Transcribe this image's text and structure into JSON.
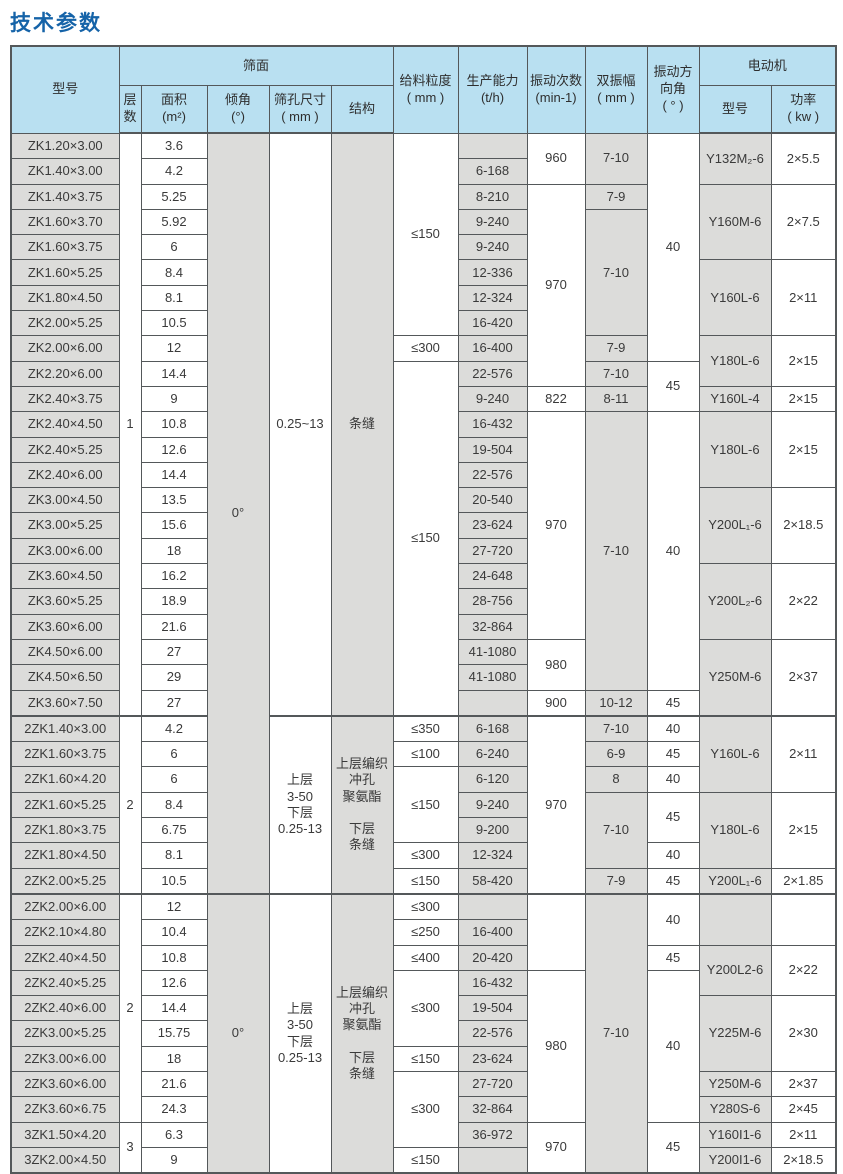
{
  "title": "技术参数",
  "colors": {
    "title": "#1563a8",
    "header_bg": "#b9e0f1",
    "cell_shade": "#dcdcda",
    "border": "#54585a",
    "text": "#3a3a3a"
  },
  "table": {
    "header": {
      "model": "型号",
      "screen_group": "筛面",
      "layers": "层\n数",
      "area": "面积\n(m²)",
      "incline": "倾角\n(°)",
      "aperture": "筛孔尺寸\n( mm )",
      "structure": "结构",
      "feed_size": "给料粒度\n( mm )",
      "capacity": "生产能力\n(t/h)",
      "frequency": "振动次数\n(min-1)",
      "amplitude": "双振幅\n( mm )",
      "direction_angle": "振动方\n向角\n( ° )",
      "motor_group": "电动机",
      "motor_model": "型号",
      "motor_power": "功率\n( kw )"
    },
    "columns": [
      {
        "key": "model",
        "width": 108,
        "shade": true
      },
      {
        "key": "layers",
        "width": 22,
        "shade": false
      },
      {
        "key": "area",
        "width": 66,
        "shade": false
      },
      {
        "key": "incline",
        "width": 62,
        "shade": true
      },
      {
        "key": "aperture",
        "width": 62,
        "shade": false
      },
      {
        "key": "structure",
        "width": 62,
        "shade": true
      },
      {
        "key": "feed_size",
        "width": 65,
        "shade": false
      },
      {
        "key": "capacity",
        "width": 69,
        "shade": true
      },
      {
        "key": "frequency",
        "width": 58,
        "shade": false
      },
      {
        "key": "amplitude",
        "width": 62,
        "shade": true
      },
      {
        "key": "direction_angle",
        "width": 52,
        "shade": false
      },
      {
        "key": "motor_model",
        "width": 72,
        "shade": true
      },
      {
        "key": "motor_power",
        "width": 65,
        "shade": false
      }
    ],
    "section_start_rows": [
      23,
      30
    ],
    "body": {
      "model": [
        "ZK1.20×3.00",
        "ZK1.40×3.00",
        "ZK1.40×3.75",
        "ZK1.60×3.70",
        "ZK1.60×3.75",
        "ZK1.60×5.25",
        "ZK1.80×4.50",
        "ZK2.00×5.25",
        "ZK2.00×6.00",
        "ZK2.20×6.00",
        "ZK2.40×3.75",
        "ZK2.40×4.50",
        "ZK2.40×5.25",
        "ZK2.40×6.00",
        "ZK3.00×4.50",
        "ZK3.00×5.25",
        "ZK3.00×6.00",
        "ZK3.60×4.50",
        "ZK3.60×5.25",
        "ZK3.60×6.00",
        "ZK4.50×6.00",
        "ZK4.50×6.50",
        "ZK3.60×7.50",
        "2ZK1.40×3.00",
        "2ZK1.60×3.75",
        "2ZK1.60×4.20",
        "2ZK1.60×5.25",
        "2ZK1.80×3.75",
        "2ZK1.80×4.50",
        "2ZK2.00×5.25",
        "2ZK2.00×6.00",
        "2ZK2.10×4.80",
        "2ZK2.40×4.50",
        "2ZK2.40×5.25",
        "2ZK2.40×6.00",
        "2ZK3.00×5.25",
        "2ZK3.00×6.00",
        "2ZK3.60×6.00",
        "2ZK3.60×6.75",
        "3ZK1.50×4.20",
        "3ZK2.00×4.50"
      ],
      "layers": [
        [
          "1",
          23
        ],
        [
          "2",
          7
        ],
        [
          "2",
          9
        ],
        [
          "3",
          2
        ]
      ],
      "area": [
        "3.6",
        "4.2",
        "5.25",
        "5.92",
        "6",
        "8.4",
        "8.1",
        "10.5",
        "12",
        "14.4",
        "9",
        "10.8",
        "12.6",
        "14.4",
        "13.5",
        "15.6",
        "18",
        "16.2",
        "18.9",
        "21.6",
        "27",
        "29",
        "27",
        "4.2",
        "6",
        "6",
        "8.4",
        "6.75",
        "8.1",
        "10.5",
        "12",
        "10.4",
        "10.8",
        "12.6",
        "14.4",
        "15.75",
        "18",
        "21.6",
        "24.3",
        "6.3",
        "9"
      ],
      "incline": [
        [
          "0°",
          30
        ],
        [
          "0°",
          11
        ]
      ],
      "aperture": [
        [
          "0.25~13",
          23
        ],
        [
          "上层\n3-50\n下层\n0.25-13",
          7
        ],
        [
          "上层\n3-50\n下层\n0.25-13",
          11
        ]
      ],
      "structure": [
        [
          "条缝",
          23
        ],
        [
          "上层编织\n冲孔\n聚氨酯\n\n下层\n条缝",
          7
        ],
        [
          "上层编织\n冲孔\n聚氨酯\n\n下层\n条缝",
          11
        ]
      ],
      "feed_size": [
        [
          "≤150",
          8
        ],
        [
          "≤300",
          1
        ],
        [
          "≤150",
          14
        ],
        [
          "≤350",
          1
        ],
        [
          "≤100",
          1
        ],
        [
          "≤150",
          3
        ],
        [
          "≤300",
          1
        ],
        [
          "≤150",
          1
        ],
        [
          "≤300",
          1
        ],
        [
          "≤250",
          1
        ],
        [
          "≤400",
          1
        ],
        [
          "≤300",
          3
        ],
        [
          "≤150",
          1
        ],
        [
          "≤300",
          3
        ],
        [
          "≤150",
          1
        ]
      ],
      "capacity": [
        "",
        "6-168",
        "8-210",
        "9-240",
        "9-240",
        "12-336",
        "12-324",
        "16-420",
        "16-400",
        "22-576",
        "9-240",
        "16-432",
        "19-504",
        "22-576",
        "20-540",
        "23-624",
        "27-720",
        "24-648",
        "28-756",
        "32-864",
        "41-1080",
        "41-1080",
        "",
        "6-168",
        "6-240",
        "6-120",
        "9-240",
        "9-200",
        "12-324",
        "58-420",
        "",
        "16-400",
        "20-420",
        "16-432",
        "19-504",
        "22-576",
        "23-624",
        "27-720",
        "32-864",
        "36-972",
        ""
      ],
      "frequency": [
        [
          "960",
          2
        ],
        [
          "970",
          8
        ],
        [
          "822",
          1
        ],
        [
          "970",
          9
        ],
        [
          "980",
          2
        ],
        [
          "900",
          1
        ],
        [
          "970",
          7
        ],
        [
          "",
          3
        ],
        [
          "980",
          6
        ],
        [
          "970",
          2
        ]
      ],
      "amplitude": [
        [
          "7-10",
          2
        ],
        [
          "7-9",
          1
        ],
        [
          "7-10",
          5
        ],
        [
          "7-9",
          1
        ],
        [
          "7-10",
          1
        ],
        [
          "8-11",
          1
        ],
        [
          "7-10",
          11
        ],
        [
          "10-12",
          1
        ],
        [
          "7-10",
          1
        ],
        [
          "6-9",
          1
        ],
        [
          "8",
          1
        ],
        [
          "7-10",
          3
        ],
        [
          "7-9",
          1
        ],
        [
          "7-10",
          11
        ]
      ],
      "direction_angle": [
        [
          "40",
          9
        ],
        [
          "45",
          2
        ],
        [
          "40",
          11
        ],
        [
          "45",
          1
        ],
        [
          "40",
          1
        ],
        [
          "45",
          1
        ],
        [
          "40",
          1
        ],
        [
          "45",
          2
        ],
        [
          "40",
          1
        ],
        [
          "45",
          1
        ],
        [
          "40",
          2
        ],
        [
          "45",
          1
        ],
        [
          "40",
          6
        ],
        [
          "45",
          2
        ]
      ],
      "motor_model": [
        [
          "Y132M₂-6",
          2
        ],
        [
          "Y160M-6",
          3
        ],
        [
          "Y160L-6",
          3
        ],
        [
          "Y180L-6",
          2
        ],
        [
          "Y160L-4",
          1
        ],
        [
          "Y180L-6",
          3
        ],
        [
          "Y200L₁-6",
          3
        ],
        [
          "Y200L₂-6",
          3
        ],
        [
          "Y250M-6",
          3
        ],
        [
          "Y160L-6",
          3
        ],
        [
          "Y180L-6",
          3
        ],
        [
          "Y200L₁-6",
          1
        ],
        [
          "",
          2
        ],
        [
          "Y200L2-6",
          2
        ],
        [
          "Y225M-6",
          3
        ],
        [
          "Y250M-6",
          1
        ],
        [
          "Y280S-6",
          1
        ],
        [
          "Y160I1-6",
          1
        ],
        [
          "Y200I1-6",
          1
        ]
      ],
      "motor_power": [
        [
          "2×5.5",
          2
        ],
        [
          "2×7.5",
          3
        ],
        [
          "2×11",
          3
        ],
        [
          "2×15",
          2
        ],
        [
          "2×15",
          1
        ],
        [
          "2×15",
          3
        ],
        [
          "2×18.5",
          3
        ],
        [
          "2×22",
          3
        ],
        [
          "2×37",
          3
        ],
        [
          "2×11",
          3
        ],
        [
          "2×15",
          3
        ],
        [
          "2×1.85",
          1
        ],
        [
          "",
          2
        ],
        [
          "2×22",
          2
        ],
        [
          "2×30",
          3
        ],
        [
          "2×37",
          1
        ],
        [
          "2×45",
          1
        ],
        [
          "2×11",
          1
        ],
        [
          "2×18.5",
          1
        ]
      ]
    }
  }
}
